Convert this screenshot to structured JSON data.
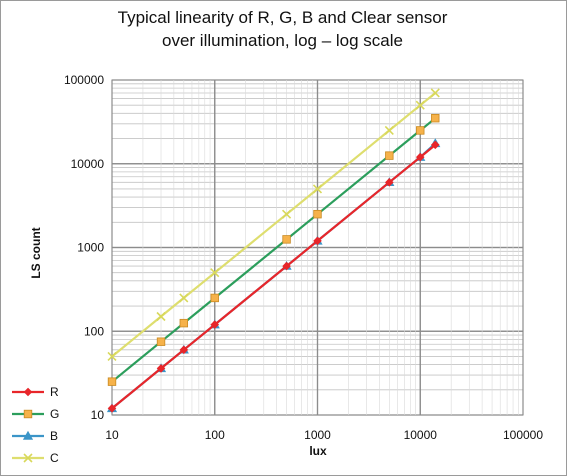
{
  "chart_data": {
    "type": "line",
    "title_line1": "Typical linearity of R, G, B and Clear sensor",
    "title_line2": "over illumination, log – log scale",
    "xlabel": "lux",
    "ylabel": "LS count",
    "xscale": "log",
    "yscale": "log",
    "xlim": [
      10,
      100000
    ],
    "ylim": [
      10,
      100000
    ],
    "grid": true,
    "legend_position": "bottom-left",
    "x_ticks": [
      "10",
      "100",
      "1000",
      "10000",
      "100000"
    ],
    "y_ticks": [
      "10",
      "100",
      "1000",
      "10000",
      "100000"
    ],
    "series": [
      {
        "name": "R",
        "color": "#e8262a",
        "marker": "diamond",
        "points": [
          [
            10,
            12
          ],
          [
            30,
            36
          ],
          [
            50,
            60
          ],
          [
            100,
            120
          ],
          [
            500,
            600
          ],
          [
            1000,
            1200
          ],
          [
            5000,
            6000
          ],
          [
            10000,
            12000
          ],
          [
            14000,
            16800
          ]
        ]
      },
      {
        "name": "G",
        "color": "#2c9e5c",
        "marker": "square",
        "marker_fill": "#f6b24a",
        "points": [
          [
            10,
            25
          ],
          [
            30,
            75
          ],
          [
            50,
            125
          ],
          [
            100,
            250
          ],
          [
            500,
            1250
          ],
          [
            1000,
            2500
          ],
          [
            5000,
            12500
          ],
          [
            10000,
            25000
          ],
          [
            14000,
            35000
          ]
        ]
      },
      {
        "name": "B",
        "color": "#3b95c8",
        "marker": "triangle",
        "points": [
          [
            10,
            12
          ],
          [
            30,
            36
          ],
          [
            50,
            60
          ],
          [
            100,
            120
          ],
          [
            500,
            600
          ],
          [
            1000,
            1200
          ],
          [
            5000,
            6000
          ],
          [
            10000,
            12000
          ],
          [
            14000,
            17500
          ]
        ]
      },
      {
        "name": "C",
        "color": "#dede6e",
        "marker": "x",
        "points": [
          [
            10,
            50
          ],
          [
            30,
            150
          ],
          [
            50,
            250
          ],
          [
            100,
            500
          ],
          [
            500,
            2500
          ],
          [
            1000,
            5000
          ],
          [
            5000,
            25000
          ],
          [
            10000,
            50000
          ],
          [
            14000,
            70000
          ]
        ]
      }
    ]
  }
}
